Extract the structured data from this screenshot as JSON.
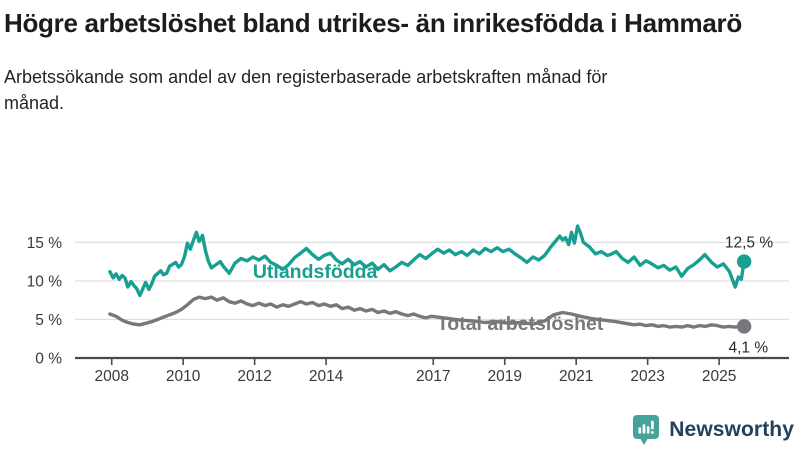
{
  "header": {
    "title": "Högre arbetslöshet bland utrikes- än inrikesfödda i Hammarö",
    "subtitle": "Arbetssökande som andel av den registerbaserade arbetskraften månad för månad."
  },
  "chart_data": {
    "type": "line",
    "title": "Högre arbetslöshet bland utrikes- än inrikesfödda i Hammarö",
    "subtitle": "Arbetssökande som andel av den registerbaserade arbetskraften månad för månad.",
    "grid": true,
    "x_axis": {
      "ticks": [
        2008,
        2010,
        2012,
        2014,
        2017,
        2019,
        2021,
        2023,
        2025
      ],
      "range": [
        2007.0,
        2026.5
      ]
    },
    "y_axis": {
      "ticks": [
        0,
        5,
        10,
        15
      ],
      "tick_labels": [
        "0 %",
        "5 %",
        "10 %",
        "15 %"
      ],
      "unit": "%",
      "range": [
        0,
        17.5
      ]
    },
    "series": [
      {
        "name": "Utlandsfödda",
        "color": "#17a092",
        "end_value": 12.5,
        "end_label": "12,5 %",
        "end_label_offset": [
          29,
          -14
        ],
        "name_label_pos": {
          "year": 2011.95,
          "value": 10.35
        },
        "points": [
          [
            2007.95,
            11.2
          ],
          [
            2008.04,
            10.4
          ],
          [
            2008.12,
            10.9
          ],
          [
            2008.21,
            10.2
          ],
          [
            2008.29,
            10.7
          ],
          [
            2008.37,
            10.4
          ],
          [
            2008.45,
            9.2
          ],
          [
            2008.54,
            9.9
          ],
          [
            2008.62,
            9.4
          ],
          [
            2008.7,
            9.0
          ],
          [
            2008.79,
            8.1
          ],
          [
            2008.95,
            9.8
          ],
          [
            2009.04,
            8.9
          ],
          [
            2009.12,
            9.6
          ],
          [
            2009.2,
            10.6
          ],
          [
            2009.37,
            11.3
          ],
          [
            2009.45,
            10.8
          ],
          [
            2009.54,
            11.0
          ],
          [
            2009.62,
            11.9
          ],
          [
            2009.79,
            12.4
          ],
          [
            2009.87,
            11.8
          ],
          [
            2009.95,
            12.1
          ],
          [
            2010.04,
            13.2
          ],
          [
            2010.12,
            14.9
          ],
          [
            2010.2,
            14.1
          ],
          [
            2010.29,
            15.3
          ],
          [
            2010.37,
            16.3
          ],
          [
            2010.45,
            15.1
          ],
          [
            2010.54,
            15.9
          ],
          [
            2010.62,
            14.0
          ],
          [
            2010.7,
            12.6
          ],
          [
            2010.79,
            11.7
          ],
          [
            2010.95,
            12.2
          ],
          [
            2011.04,
            12.5
          ],
          [
            2011.12,
            11.9
          ],
          [
            2011.29,
            11.0
          ],
          [
            2011.45,
            12.3
          ],
          [
            2011.62,
            12.9
          ],
          [
            2011.79,
            12.6
          ],
          [
            2011.95,
            13.1
          ],
          [
            2012.12,
            12.7
          ],
          [
            2012.29,
            13.2
          ],
          [
            2012.45,
            12.4
          ],
          [
            2012.62,
            12.0
          ],
          [
            2012.79,
            11.5
          ],
          [
            2012.95,
            12.1
          ],
          [
            2013.12,
            13.0
          ],
          [
            2013.29,
            13.6
          ],
          [
            2013.45,
            14.2
          ],
          [
            2013.62,
            13.4
          ],
          [
            2013.79,
            12.8
          ],
          [
            2013.95,
            13.3
          ],
          [
            2014.12,
            13.6
          ],
          [
            2014.29,
            12.7
          ],
          [
            2014.45,
            12.2
          ],
          [
            2014.62,
            12.8
          ],
          [
            2014.79,
            12.1
          ],
          [
            2014.95,
            12.5
          ],
          [
            2015.12,
            11.8
          ],
          [
            2015.29,
            12.3
          ],
          [
            2015.45,
            11.5
          ],
          [
            2015.62,
            12.1
          ],
          [
            2015.79,
            11.3
          ],
          [
            2015.95,
            11.8
          ],
          [
            2016.12,
            12.4
          ],
          [
            2016.29,
            12.0
          ],
          [
            2016.45,
            12.7
          ],
          [
            2016.62,
            13.4
          ],
          [
            2016.79,
            12.9
          ],
          [
            2016.95,
            13.5
          ],
          [
            2017.12,
            14.1
          ],
          [
            2017.29,
            13.6
          ],
          [
            2017.45,
            14.0
          ],
          [
            2017.62,
            13.4
          ],
          [
            2017.79,
            13.8
          ],
          [
            2017.95,
            13.3
          ],
          [
            2018.12,
            14.0
          ],
          [
            2018.29,
            13.5
          ],
          [
            2018.45,
            14.2
          ],
          [
            2018.62,
            13.8
          ],
          [
            2018.79,
            14.3
          ],
          [
            2018.95,
            13.8
          ],
          [
            2019.12,
            14.1
          ],
          [
            2019.29,
            13.5
          ],
          [
            2019.45,
            13.0
          ],
          [
            2019.62,
            12.4
          ],
          [
            2019.79,
            13.1
          ],
          [
            2019.95,
            12.7
          ],
          [
            2020.12,
            13.3
          ],
          [
            2020.29,
            14.4
          ],
          [
            2020.45,
            15.3
          ],
          [
            2020.54,
            15.8
          ],
          [
            2020.62,
            15.3
          ],
          [
            2020.7,
            15.6
          ],
          [
            2020.79,
            14.7
          ],
          [
            2020.87,
            16.3
          ],
          [
            2020.95,
            14.9
          ],
          [
            2021.04,
            17.1
          ],
          [
            2021.12,
            16.2
          ],
          [
            2021.2,
            15.0
          ],
          [
            2021.37,
            14.4
          ],
          [
            2021.54,
            13.5
          ],
          [
            2021.7,
            13.8
          ],
          [
            2021.87,
            13.3
          ],
          [
            2021.95,
            13.4
          ],
          [
            2022.12,
            13.8
          ],
          [
            2022.29,
            12.9
          ],
          [
            2022.45,
            12.4
          ],
          [
            2022.62,
            13.1
          ],
          [
            2022.79,
            12.0
          ],
          [
            2022.95,
            12.6
          ],
          [
            2023.12,
            12.2
          ],
          [
            2023.29,
            11.7
          ],
          [
            2023.45,
            12.0
          ],
          [
            2023.62,
            11.4
          ],
          [
            2023.79,
            11.8
          ],
          [
            2023.95,
            10.6
          ],
          [
            2024.12,
            11.6
          ],
          [
            2024.29,
            12.1
          ],
          [
            2024.45,
            12.7
          ],
          [
            2024.6,
            13.4
          ],
          [
            2024.79,
            12.4
          ],
          [
            2024.95,
            11.8
          ],
          [
            2025.12,
            12.2
          ],
          [
            2025.29,
            11.2
          ],
          [
            2025.45,
            9.2
          ],
          [
            2025.54,
            10.5
          ],
          [
            2025.62,
            10.2
          ],
          [
            2025.7,
            12.5
          ]
        ]
      },
      {
        "name": "Total arbetslöshet",
        "color": "#77787c",
        "end_value": 4.1,
        "end_label": "4,1 %",
        "end_label_offset": [
          24,
          26
        ],
        "name_label_pos": {
          "year": 2017.1,
          "value": 3.65
        },
        "points": [
          [
            2007.95,
            5.7
          ],
          [
            2008.12,
            5.4
          ],
          [
            2008.29,
            4.9
          ],
          [
            2008.45,
            4.6
          ],
          [
            2008.62,
            4.4
          ],
          [
            2008.79,
            4.3
          ],
          [
            2008.95,
            4.5
          ],
          [
            2009.12,
            4.7
          ],
          [
            2009.29,
            5.0
          ],
          [
            2009.45,
            5.3
          ],
          [
            2009.62,
            5.6
          ],
          [
            2009.79,
            5.9
          ],
          [
            2009.95,
            6.3
          ],
          [
            2010.12,
            6.9
          ],
          [
            2010.29,
            7.6
          ],
          [
            2010.45,
            7.9
          ],
          [
            2010.62,
            7.7
          ],
          [
            2010.79,
            7.9
          ],
          [
            2010.95,
            7.5
          ],
          [
            2011.12,
            7.8
          ],
          [
            2011.29,
            7.3
          ],
          [
            2011.45,
            7.1
          ],
          [
            2011.62,
            7.4
          ],
          [
            2011.79,
            7.0
          ],
          [
            2011.95,
            6.8
          ],
          [
            2012.12,
            7.1
          ],
          [
            2012.29,
            6.8
          ],
          [
            2012.45,
            7.0
          ],
          [
            2012.62,
            6.6
          ],
          [
            2012.79,
            6.9
          ],
          [
            2012.95,
            6.7
          ],
          [
            2013.12,
            7.0
          ],
          [
            2013.29,
            7.3
          ],
          [
            2013.45,
            7.0
          ],
          [
            2013.62,
            7.2
          ],
          [
            2013.79,
            6.8
          ],
          [
            2013.95,
            7.0
          ],
          [
            2014.12,
            6.7
          ],
          [
            2014.29,
            6.9
          ],
          [
            2014.45,
            6.4
          ],
          [
            2014.62,
            6.6
          ],
          [
            2014.79,
            6.2
          ],
          [
            2014.95,
            6.4
          ],
          [
            2015.12,
            6.1
          ],
          [
            2015.29,
            6.3
          ],
          [
            2015.45,
            5.9
          ],
          [
            2015.62,
            6.1
          ],
          [
            2015.79,
            5.8
          ],
          [
            2015.95,
            6.0
          ],
          [
            2016.12,
            5.7
          ],
          [
            2016.29,
            5.5
          ],
          [
            2016.45,
            5.7
          ],
          [
            2016.62,
            5.4
          ],
          [
            2016.79,
            5.2
          ],
          [
            2016.95,
            5.4
          ],
          [
            2017.12,
            5.3
          ],
          [
            2017.45,
            5.1
          ],
          [
            2017.79,
            4.9
          ],
          [
            2018.12,
            4.8
          ],
          [
            2018.45,
            4.6
          ],
          [
            2018.79,
            4.7
          ],
          [
            2019.12,
            4.5
          ],
          [
            2019.45,
            4.6
          ],
          [
            2019.79,
            4.4
          ],
          [
            2020.12,
            4.8
          ],
          [
            2020.37,
            5.6
          ],
          [
            2020.62,
            5.9
          ],
          [
            2020.87,
            5.7
          ],
          [
            2021.12,
            5.4
          ],
          [
            2021.45,
            5.1
          ],
          [
            2021.79,
            4.9
          ],
          [
            2022.12,
            4.7
          ],
          [
            2022.37,
            4.5
          ],
          [
            2022.62,
            4.3
          ],
          [
            2022.79,
            4.4
          ],
          [
            2022.95,
            4.2
          ],
          [
            2023.12,
            4.3
          ],
          [
            2023.29,
            4.1
          ],
          [
            2023.45,
            4.2
          ],
          [
            2023.62,
            4.0
          ],
          [
            2023.79,
            4.1
          ],
          [
            2023.95,
            4.0
          ],
          [
            2024.12,
            4.2
          ],
          [
            2024.29,
            4.0
          ],
          [
            2024.45,
            4.2
          ],
          [
            2024.62,
            4.1
          ],
          [
            2024.79,
            4.3
          ],
          [
            2024.95,
            4.2
          ],
          [
            2025.12,
            4.0
          ],
          [
            2025.29,
            4.1
          ],
          [
            2025.45,
            4.0
          ],
          [
            2025.62,
            4.1
          ],
          [
            2025.7,
            4.1
          ]
        ]
      }
    ],
    "colors": {
      "grid": "#d9d9d9",
      "axis": "#4a4a4a",
      "tick_text": "#3a3a3a",
      "value_label_text": "#2b2b2b"
    }
  },
  "footer": {
    "brand": "Newsworthy",
    "brand_color": "#24415a",
    "icon_color": "#47a39a",
    "icon": "bar-chart-speech-bubble"
  }
}
